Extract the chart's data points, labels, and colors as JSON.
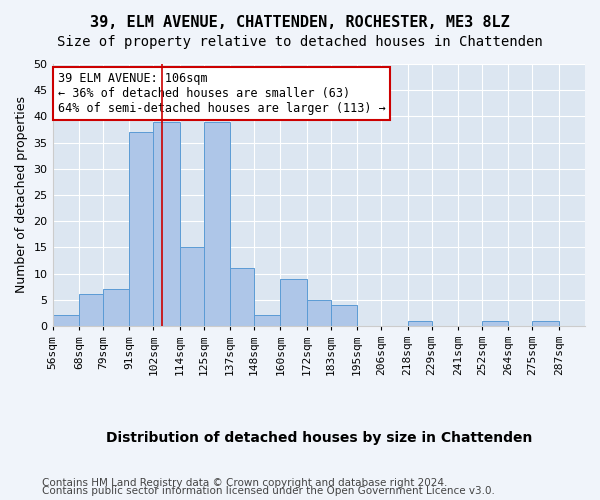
{
  "title_line1": "39, ELM AVENUE, CHATTENDEN, ROCHESTER, ME3 8LZ",
  "title_line2": "Size of property relative to detached houses in Chattenden",
  "xlabel": "Distribution of detached houses by size in Chattenden",
  "ylabel": "Number of detached properties",
  "bin_labels": [
    "56sqm",
    "68sqm",
    "79sqm",
    "91sqm",
    "102sqm",
    "114sqm",
    "125sqm",
    "137sqm",
    "148sqm",
    "160sqm",
    "172sqm",
    "183sqm",
    "195sqm",
    "206sqm",
    "218sqm",
    "229sqm",
    "241sqm",
    "252sqm",
    "264sqm",
    "275sqm",
    "287sqm"
  ],
  "bin_edges": [
    56,
    68,
    79,
    91,
    102,
    114,
    125,
    137,
    148,
    160,
    172,
    183,
    195,
    206,
    218,
    229,
    241,
    252,
    264,
    275,
    287
  ],
  "bar_values": [
    2,
    6,
    7,
    37,
    39,
    15,
    39,
    11,
    2,
    9,
    5,
    4,
    0,
    0,
    1,
    0,
    0,
    1,
    0,
    1
  ],
  "bar_color": "#aec6e8",
  "bar_edge_color": "#5b9bd5",
  "property_size": 106,
  "vline_color": "#cc0000",
  "annotation_text": "39 ELM AVENUE: 106sqm\n← 36% of detached houses are smaller (63)\n64% of semi-detached houses are larger (113) →",
  "annotation_box_color": "#ffffff",
  "annotation_box_edge": "#cc0000",
  "ylim": [
    0,
    50
  ],
  "yticks": [
    0,
    5,
    10,
    15,
    20,
    25,
    30,
    35,
    40,
    45,
    50
  ],
  "footer_line1": "Contains HM Land Registry data © Crown copyright and database right 2024.",
  "footer_line2": "Contains public sector information licensed under the Open Government Licence v3.0.",
  "bg_color": "#dce6f1",
  "plot_bg_color": "#dce6f1",
  "grid_color": "#ffffff",
  "title_fontsize": 11,
  "subtitle_fontsize": 10,
  "axis_label_fontsize": 9,
  "tick_fontsize": 8,
  "annotation_fontsize": 8.5,
  "footer_fontsize": 7.5
}
